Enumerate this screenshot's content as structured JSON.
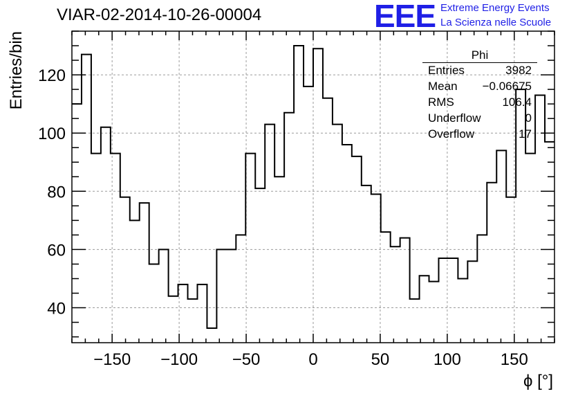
{
  "header": {
    "run_title": "VIAR-02-2014-10-26-00004",
    "logo_text": "EEE",
    "tagline_1": "Extreme Energy Events",
    "tagline_2": "La Scienza nelle Scuole"
  },
  "stats": {
    "title": "Phi",
    "rows": [
      {
        "label": "Entries",
        "value": "3982"
      },
      {
        "label": "Mean",
        "value": "−0.06675"
      },
      {
        "label": "RMS",
        "value": "106.4"
      },
      {
        "label": "Underflow",
        "value": "0"
      },
      {
        "label": "Overflow",
        "value": "17"
      }
    ]
  },
  "colors": {
    "accent": "#1f1fe6",
    "line": "#000000",
    "grid": "#9a9a9a"
  },
  "chart_data": {
    "type": "histogram-step",
    "xlabel": "ϕ [°]",
    "ylabel": "Entries/bin",
    "xlim": [
      -180,
      180
    ],
    "ylim": [
      28,
      135
    ],
    "grid": true,
    "x_ticks": [
      -150,
      -100,
      -50,
      0,
      50,
      100,
      150
    ],
    "x_tick_labels": [
      "−150",
      "−100",
      "−50",
      "0",
      "50",
      "100",
      "150"
    ],
    "y_ticks": [
      40,
      60,
      80,
      100,
      120
    ],
    "y_tick_labels": [
      "40",
      "60",
      "80",
      "100",
      "120"
    ],
    "bin_width": 7.2,
    "bin_edges_start": -180,
    "values": [
      110,
      127,
      93,
      102,
      93,
      78,
      70,
      76,
      55,
      60,
      44,
      48,
      43,
      48,
      33,
      60,
      60,
      65,
      93,
      81,
      103,
      85,
      107,
      130,
      116,
      129,
      112,
      103,
      96,
      92,
      82,
      79,
      66,
      61,
      64,
      43,
      51,
      49,
      57,
      57,
      50,
      56,
      65,
      83,
      94,
      78,
      115,
      93,
      113,
      97
    ]
  }
}
